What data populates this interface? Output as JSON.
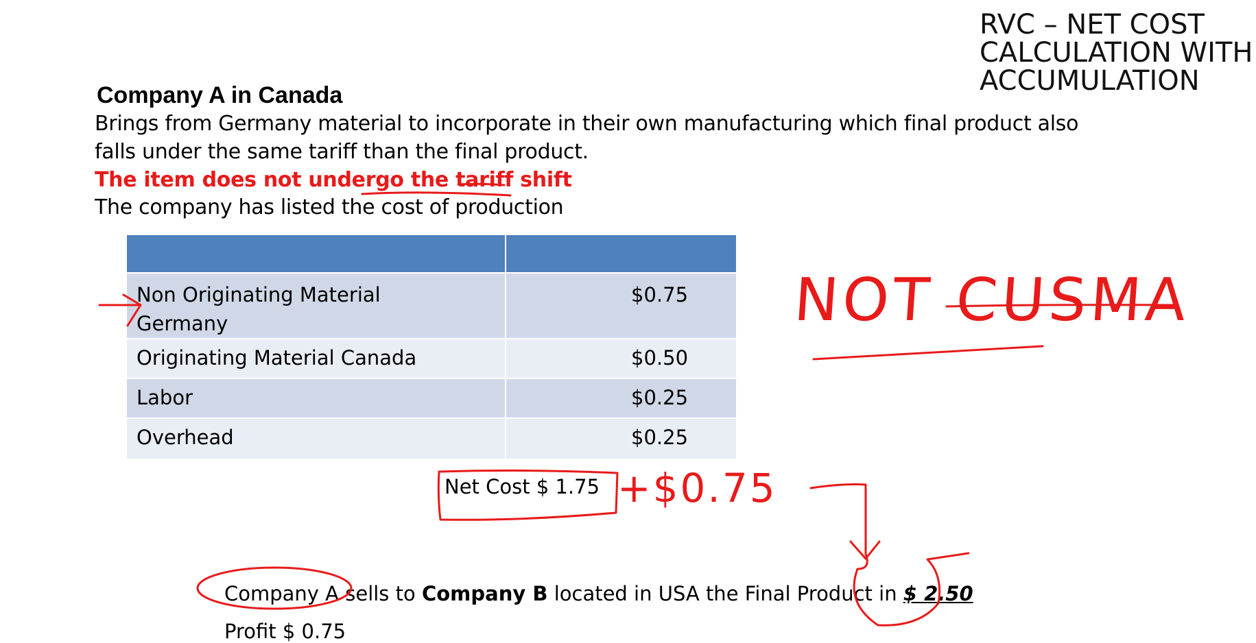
{
  "slide": {
    "title_lines": [
      "RVC – NET COST",
      "CALCULATION WITH",
      "ACCUMULATION"
    ]
  },
  "content": {
    "heading": "Company A in Canada",
    "line1": "Brings from Germany material to incorporate in their own manufacturing which final product  also",
    "line2": "falls under the same tariff than the final product.",
    "red_line": "The item does not undergo the tariff shift",
    "line4": "The company has listed the cost of production"
  },
  "table": {
    "rows": [
      {
        "label": "Non Originating Material Germany",
        "value": "$0.75"
      },
      {
        "label": "Originating Material Canada",
        "value": "$0.50"
      },
      {
        "label": "Labor",
        "value": "$0.25"
      },
      {
        "label": "Overhead",
        "value": "$0.25"
      }
    ]
  },
  "net_cost": "Net Cost  $ 1.75",
  "sale": {
    "part1": "Company A sells to ",
    "bold": "Company B",
    "part2": " located in USA the Final Product  in ",
    "price": "$ 2.50"
  },
  "profit": "Profit $ 0.75",
  "annotations": {
    "not_cusma": "NOT CUSMA",
    "plus_note": "+$0.75"
  },
  "colors": {
    "accent_red": "#e81a1a",
    "table_header": "#4f81bd",
    "row_dark": "#d0d8e8",
    "row_light": "#e9edf4"
  }
}
